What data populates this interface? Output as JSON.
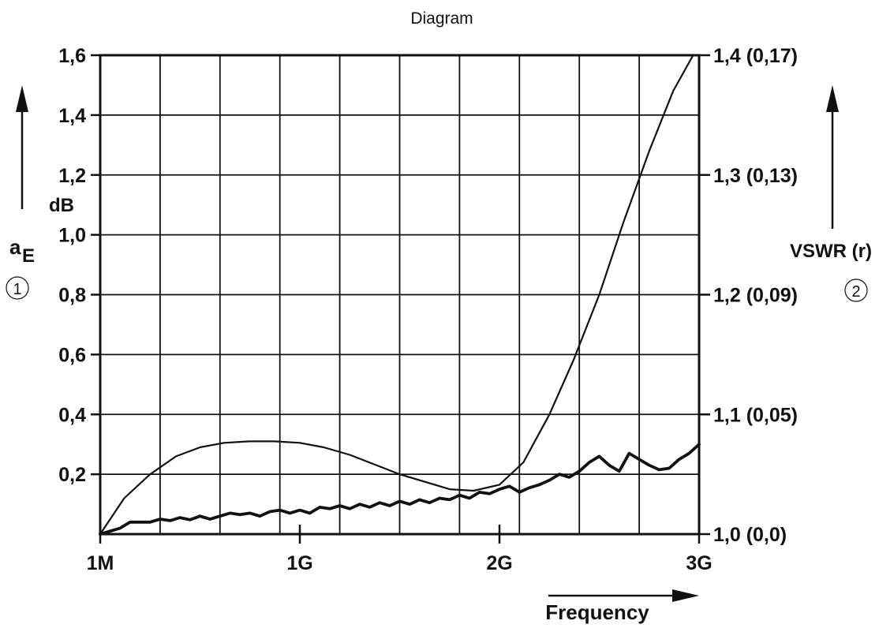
{
  "chart_data": {
    "type": "line",
    "title": "Diagram",
    "xlabel": "Frequency",
    "ylabel_left": "a",
    "ylabel_left_sub": "E",
    "ylabel_left_unit": "dB",
    "ylabel_right": "VSWR (r)",
    "left_marker": "1",
    "right_marker": "2",
    "grid": true,
    "xlim": [
      0,
      3
    ],
    "ylim_left": [
      0,
      1.6
    ],
    "x_ticks": [
      {
        "x": 0,
        "label": "1M"
      },
      {
        "x": 1,
        "label": "1G"
      },
      {
        "x": 2,
        "label": "2G"
      },
      {
        "x": 3,
        "label": "3G"
      }
    ],
    "y_left_ticks": [
      {
        "y": 0.2,
        "label": "0,2"
      },
      {
        "y": 0.4,
        "label": "0,4"
      },
      {
        "y": 0.6,
        "label": "0,6"
      },
      {
        "y": 0.8,
        "label": "0,8"
      },
      {
        "y": 1.0,
        "label": "1,0"
      },
      {
        "y": 1.2,
        "label": "1,2"
      },
      {
        "y": 1.4,
        "label": "1,4"
      },
      {
        "y": 1.6,
        "label": "1,6"
      }
    ],
    "y_right_ticks": [
      {
        "y": 0.0,
        "label": "1,0 (0,0)"
      },
      {
        "y": 0.4,
        "label": "1,1 (0,05)"
      },
      {
        "y": 0.8,
        "label": "1,2 (0,09)"
      },
      {
        "y": 1.2,
        "label": "1,3 (0,13)"
      },
      {
        "y": 1.6,
        "label": "1,4 (0,17)"
      }
    ],
    "series": [
      {
        "style": "thin",
        "x": [
          0,
          0.12,
          0.25,
          0.38,
          0.5,
          0.62,
          0.75,
          0.87,
          1.0,
          1.12,
          1.25,
          1.5,
          1.75,
          1.87,
          2.0,
          2.12,
          2.25,
          2.37,
          2.5,
          2.62,
          2.75,
          2.87,
          2.97
        ],
        "y": [
          0,
          0.12,
          0.2,
          0.26,
          0.29,
          0.305,
          0.31,
          0.31,
          0.305,
          0.29,
          0.265,
          0.2,
          0.15,
          0.145,
          0.165,
          0.24,
          0.4,
          0.58,
          0.8,
          1.04,
          1.28,
          1.48,
          1.6
        ]
      },
      {
        "style": "thick",
        "x": [
          0,
          0.1,
          0.15,
          0.25,
          0.3,
          0.35,
          0.4,
          0.45,
          0.5,
          0.55,
          0.6,
          0.65,
          0.7,
          0.75,
          0.8,
          0.85,
          0.9,
          0.95,
          1.0,
          1.05,
          1.1,
          1.15,
          1.2,
          1.25,
          1.3,
          1.35,
          1.4,
          1.45,
          1.5,
          1.55,
          1.6,
          1.65,
          1.7,
          1.75,
          1.8,
          1.85,
          1.9,
          1.95,
          2.0,
          2.05,
          2.1,
          2.15,
          2.2,
          2.25,
          2.3,
          2.35,
          2.4,
          2.45,
          2.5,
          2.55,
          2.6,
          2.65,
          2.7,
          2.75,
          2.8,
          2.85,
          2.9,
          2.95,
          3.0
        ],
        "y": [
          0,
          0.02,
          0.04,
          0.04,
          0.05,
          0.045,
          0.055,
          0.048,
          0.06,
          0.05,
          0.06,
          0.07,
          0.065,
          0.07,
          0.06,
          0.075,
          0.08,
          0.07,
          0.08,
          0.07,
          0.09,
          0.085,
          0.095,
          0.085,
          0.1,
          0.09,
          0.105,
          0.095,
          0.11,
          0.1,
          0.115,
          0.105,
          0.12,
          0.115,
          0.13,
          0.12,
          0.14,
          0.135,
          0.15,
          0.16,
          0.14,
          0.155,
          0.165,
          0.18,
          0.2,
          0.19,
          0.21,
          0.24,
          0.26,
          0.23,
          0.21,
          0.27,
          0.25,
          0.23,
          0.215,
          0.22,
          0.25,
          0.27,
          0.3
        ]
      }
    ]
  }
}
